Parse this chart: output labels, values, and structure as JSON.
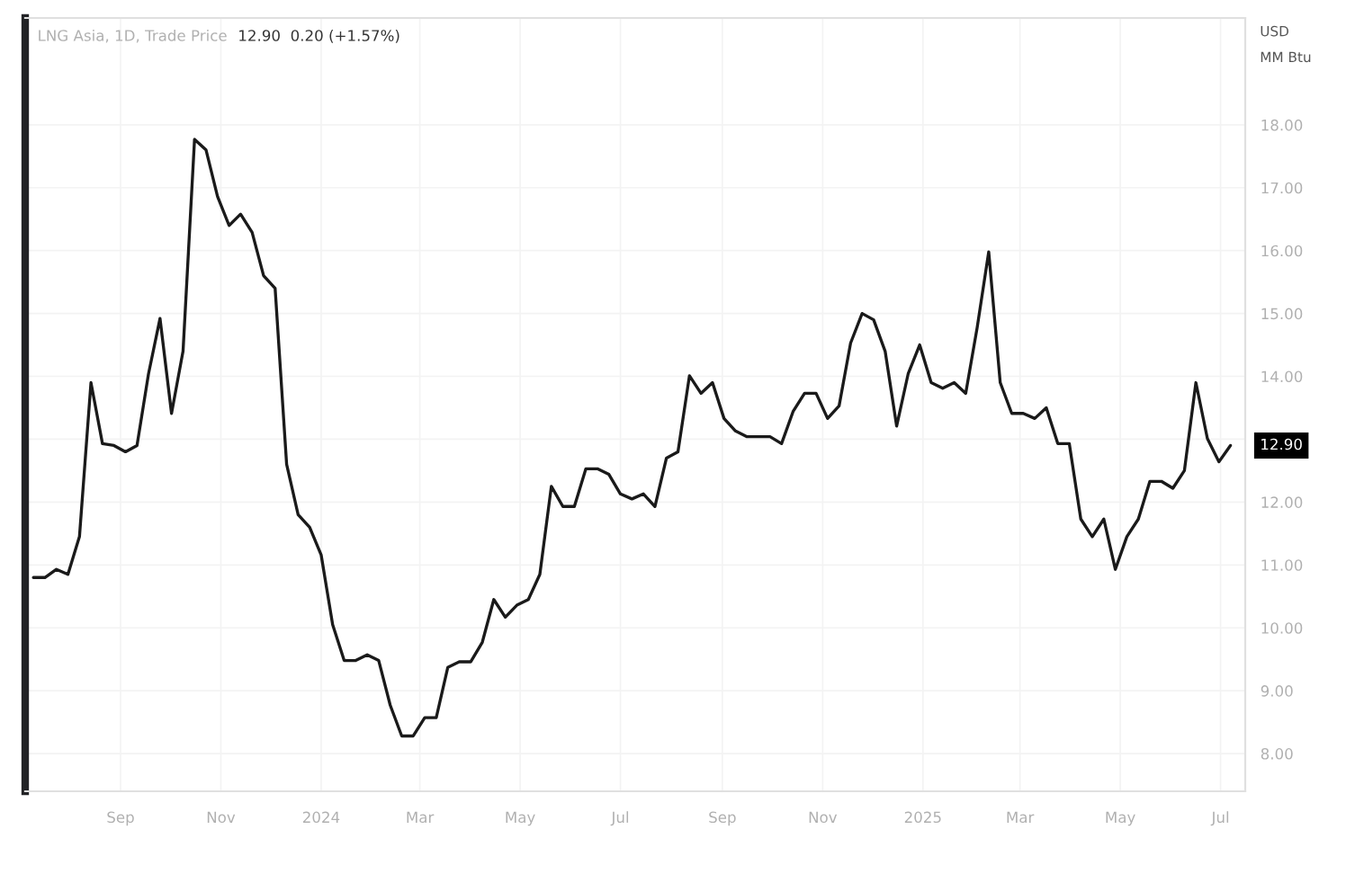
{
  "chart_data": {
    "type": "line",
    "title": "LNG Asia, 1D, Trade Price",
    "subtitle": "12.90  0.20 (+1.57%)",
    "ylabel": "USD\nMM Btu",
    "x": [
      "2023-07-10",
      "2023-07-17",
      "2023-07-24",
      "2023-07-31",
      "2023-08-07",
      "2023-08-14",
      "2023-08-21",
      "2023-08-28",
      "2023-09-04",
      "2023-09-11",
      "2023-09-18",
      "2023-09-25",
      "2023-10-02",
      "2023-10-09",
      "2023-10-16",
      "2023-10-23",
      "2023-10-30",
      "2023-11-06",
      "2023-11-13",
      "2023-11-20",
      "2023-11-27",
      "2023-12-04",
      "2023-12-11",
      "2023-12-18",
      "2023-12-25",
      "2024-01-01",
      "2024-01-08",
      "2024-01-15",
      "2024-01-22",
      "2024-01-29",
      "2024-02-05",
      "2024-02-12",
      "2024-02-19",
      "2024-02-26",
      "2024-03-04",
      "2024-03-11",
      "2024-03-18",
      "2024-03-25",
      "2024-04-01",
      "2024-04-08",
      "2024-04-15",
      "2024-04-22",
      "2024-04-29",
      "2024-05-06",
      "2024-05-13",
      "2024-05-20",
      "2024-05-27",
      "2024-06-03",
      "2024-06-10",
      "2024-06-17",
      "2024-06-24",
      "2024-07-01",
      "2024-07-08",
      "2024-07-15",
      "2024-07-22",
      "2024-07-29",
      "2024-08-05",
      "2024-08-12",
      "2024-08-19",
      "2024-08-26",
      "2024-09-02",
      "2024-09-09",
      "2024-09-16",
      "2024-09-23",
      "2024-09-30",
      "2024-10-07",
      "2024-10-14",
      "2024-10-21",
      "2024-10-28",
      "2024-11-04",
      "2024-11-11",
      "2024-11-18",
      "2024-11-25",
      "2024-12-02",
      "2024-12-09",
      "2024-12-16",
      "2024-12-23",
      "2024-12-30",
      "2025-01-06",
      "2025-01-13",
      "2025-01-20",
      "2025-01-27",
      "2025-02-03",
      "2025-02-10",
      "2025-02-17",
      "2025-02-24",
      "2025-03-03",
      "2025-03-10",
      "2025-03-17",
      "2025-03-24",
      "2025-03-31",
      "2025-04-07",
      "2025-04-14",
      "2025-04-21",
      "2025-04-28",
      "2025-05-05",
      "2025-05-12",
      "2025-05-19",
      "2025-05-26",
      "2025-06-02",
      "2025-06-09",
      "2025-06-16",
      "2025-06-23",
      "2025-06-30",
      "2025-07-07"
    ],
    "series": [
      {
        "color": "#1a1a1a",
        "values": [
          10.8,
          10.8,
          10.93,
          10.85,
          11.45,
          13.9,
          12.93,
          12.9,
          12.8,
          12.9,
          14.04,
          14.92,
          13.41,
          14.4,
          17.77,
          17.6,
          16.86,
          16.4,
          16.58,
          16.29,
          15.6,
          15.4,
          12.6,
          11.8,
          11.6,
          11.16,
          10.05,
          9.48,
          9.48,
          9.57,
          9.48,
          8.77,
          8.28,
          8.28,
          8.57,
          8.57,
          9.37,
          9.46,
          9.46,
          9.77,
          10.45,
          10.17,
          10.36,
          10.45,
          10.85,
          12.25,
          11.93,
          11.93,
          12.53,
          12.53,
          12.44,
          12.13,
          12.05,
          12.13,
          11.93,
          12.7,
          12.8,
          14.01,
          13.73,
          13.9,
          13.33,
          13.13,
          13.04,
          13.04,
          13.04,
          12.93,
          13.44,
          13.73,
          13.73,
          13.33,
          13.53,
          14.53,
          15.0,
          14.9,
          14.4,
          13.21,
          14.04,
          14.5,
          13.9,
          13.81,
          13.9,
          13.73,
          14.78,
          15.98,
          13.9,
          13.41,
          13.41,
          13.33,
          13.5,
          12.93,
          12.93,
          11.73,
          11.45,
          11.73,
          10.93,
          11.45,
          11.73,
          12.33,
          12.33,
          12.22,
          12.5,
          13.9,
          13.01,
          12.64,
          12.9
        ]
      }
    ],
    "annotations": [
      "12.90"
    ],
    "xlim": [
      "2023-07-05",
      "2025-07-16"
    ],
    "xticks": [
      {
        "value": "2023-09-01",
        "label": "Sep"
      },
      {
        "value": "2023-11-01",
        "label": "Nov"
      },
      {
        "value": "2024-01-01",
        "label": "2024"
      },
      {
        "value": "2024-03-01",
        "label": "Mar"
      },
      {
        "value": "2024-05-01",
        "label": "May"
      },
      {
        "value": "2024-07-01",
        "label": "Jul"
      },
      {
        "value": "2024-09-01",
        "label": "Sep"
      },
      {
        "value": "2024-11-01",
        "label": "Nov"
      },
      {
        "value": "2025-01-01",
        "label": "2025"
      },
      {
        "value": "2025-03-01",
        "label": "Mar"
      },
      {
        "value": "2025-05-01",
        "label": "May"
      },
      {
        "value": "2025-07-01",
        "label": "Jul"
      }
    ],
    "ylim": [
      7.4,
      19.7
    ],
    "yticks": [
      {
        "value": 8,
        "label": "8.00"
      },
      {
        "value": 9,
        "label": "9.00"
      },
      {
        "value": 10,
        "label": "10.00"
      },
      {
        "value": 11,
        "label": "11.00"
      },
      {
        "value": 12,
        "label": "12.00"
      },
      {
        "value": 13,
        "label": null
      },
      {
        "value": 14,
        "label": "14.00"
      },
      {
        "value": 15,
        "label": "15.00"
      },
      {
        "value": 16,
        "label": "16.00"
      },
      {
        "value": 17,
        "label": "17.00"
      },
      {
        "value": 18,
        "label": "18.00"
      }
    ],
    "grid": true,
    "legend": false,
    "line_style": "solid",
    "marker": "none"
  }
}
